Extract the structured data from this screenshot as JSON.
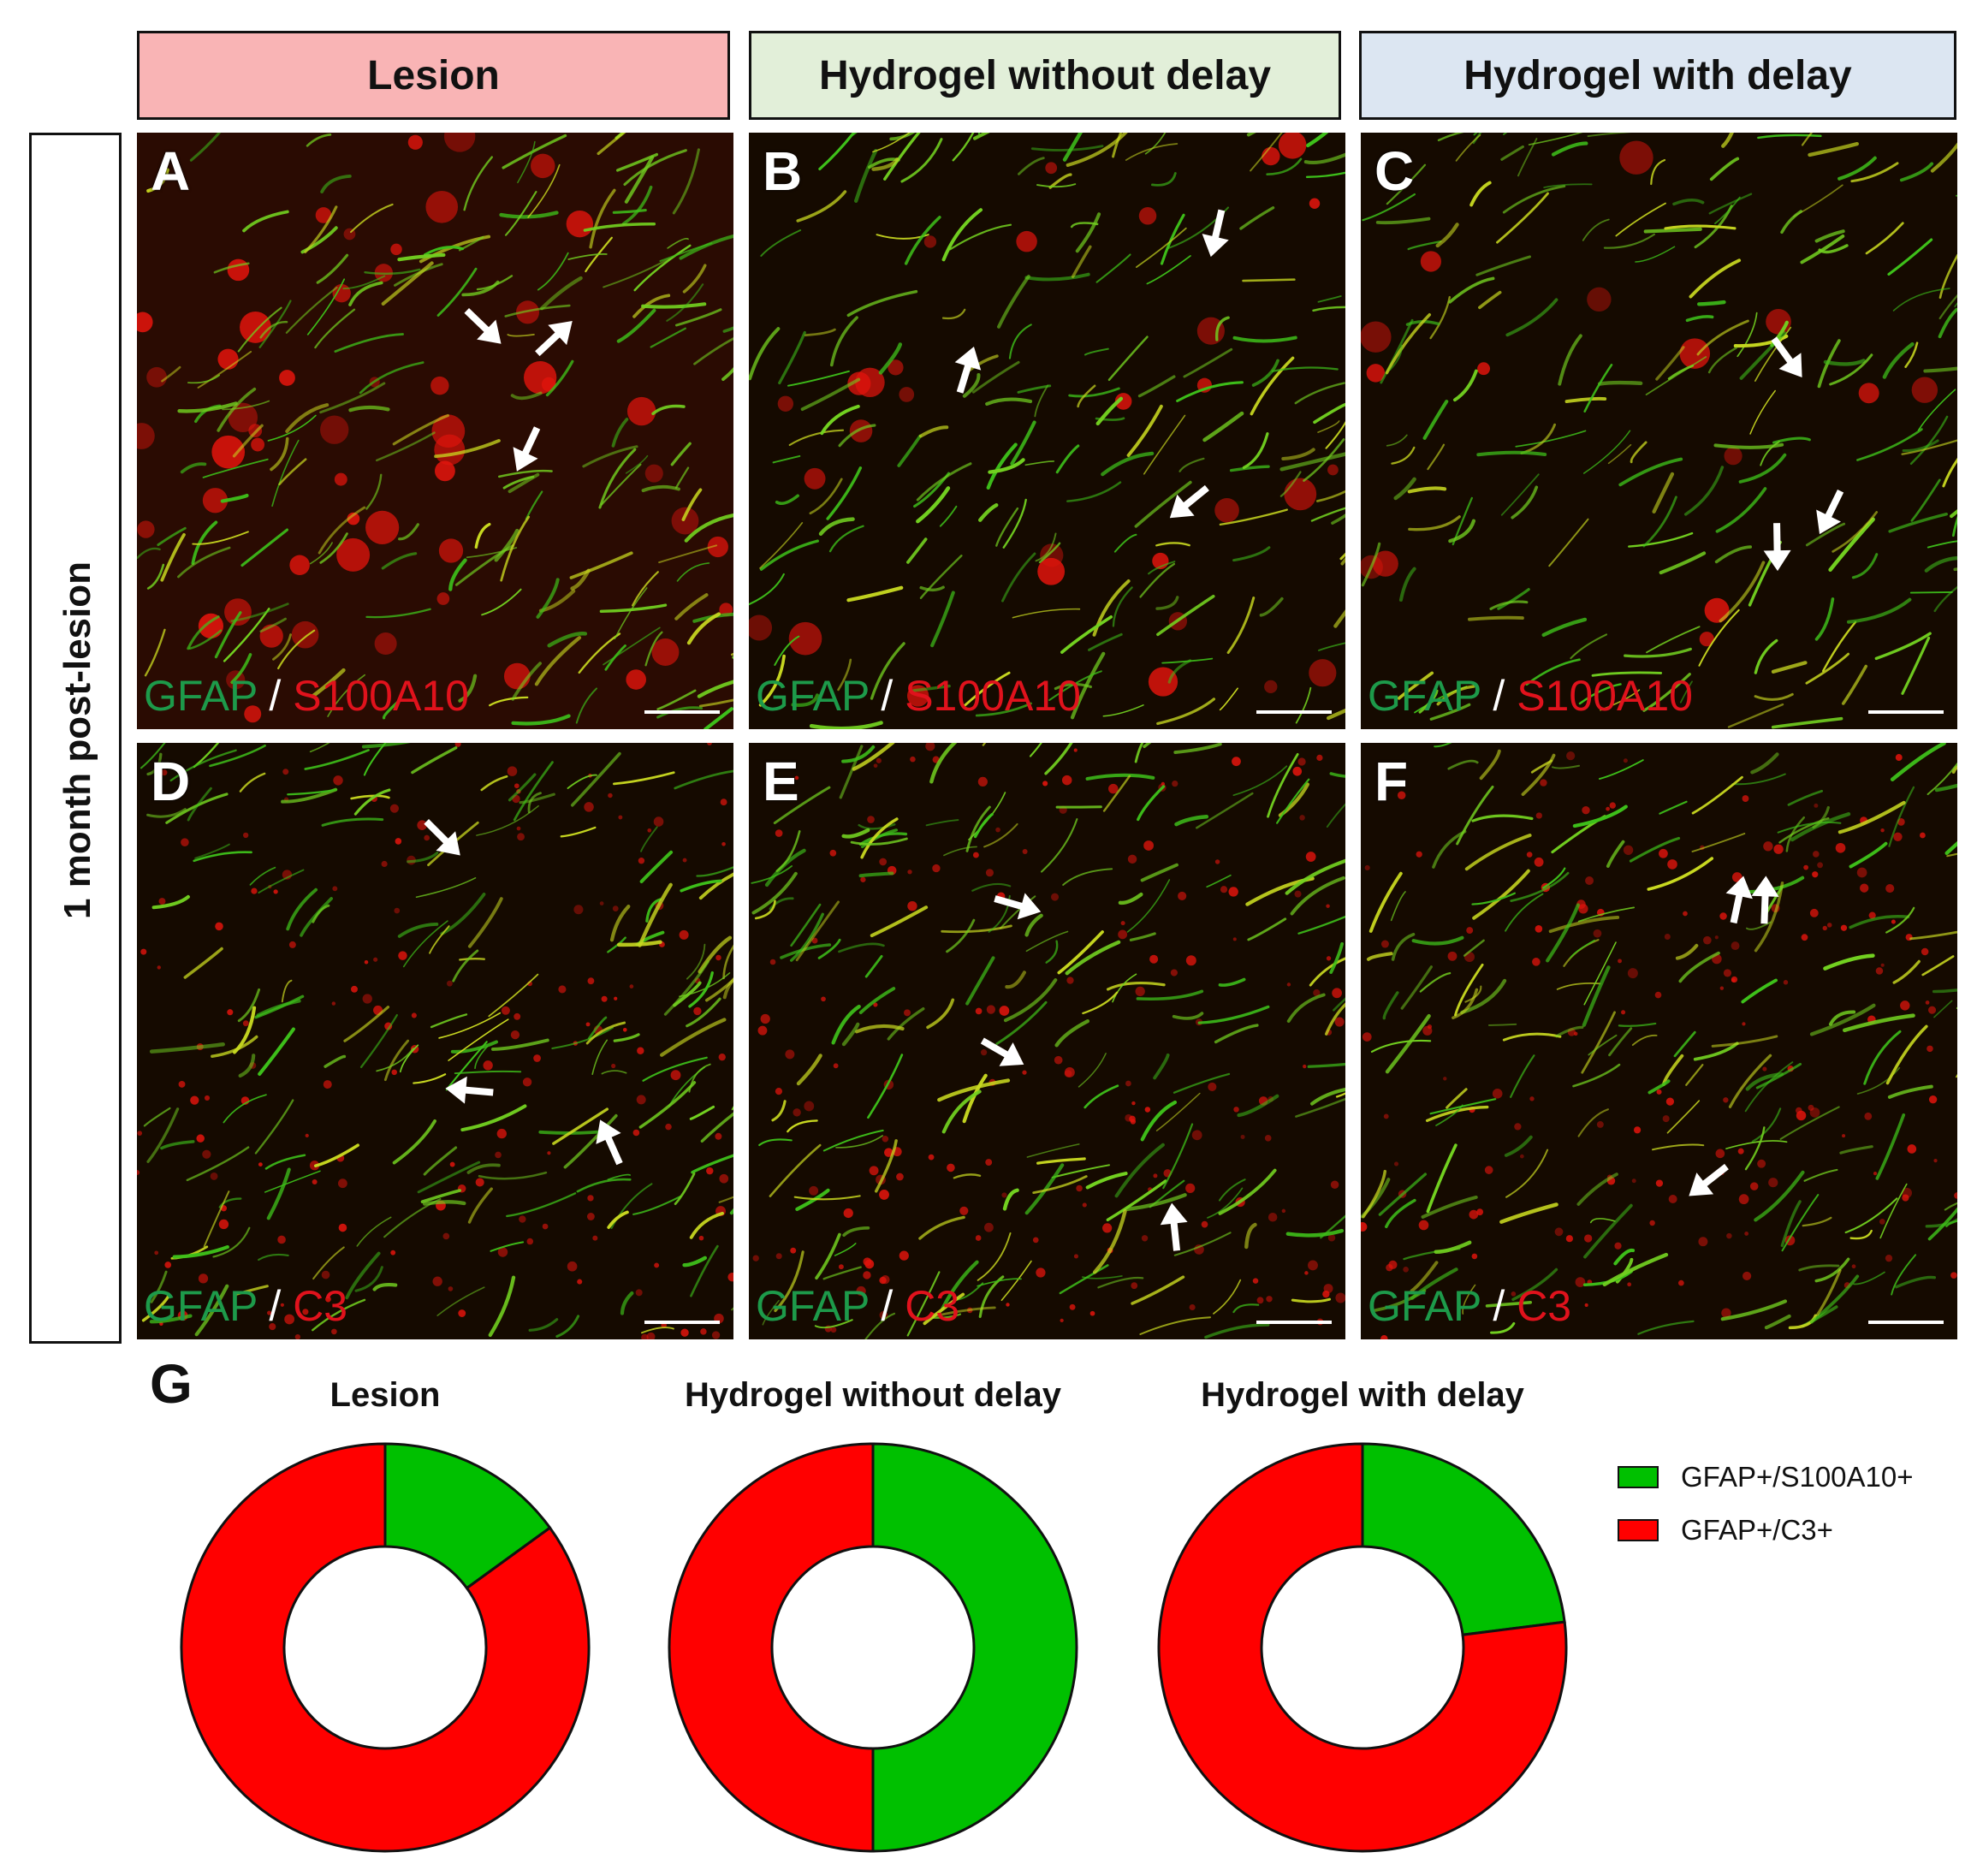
{
  "columns": [
    {
      "label": "Lesion",
      "color": "#f9b4b5"
    },
    {
      "label": "Hydrogel without delay",
      "color": "#e2efd9"
    },
    {
      "label": "Hydrogel with delay",
      "color": "#dce6f2"
    }
  ],
  "row_label": "1 month post-lesion",
  "panels": [
    {
      "letter": "A",
      "marker_green": "GFAP",
      "separator": "/",
      "marker_red": "S100A10"
    },
    {
      "letter": "B",
      "marker_green": "GFAP",
      "separator": "/",
      "marker_red": "S100A10"
    },
    {
      "letter": "C",
      "marker_green": "GFAP",
      "separator": "/",
      "marker_red": "S100A10"
    },
    {
      "letter": "D",
      "marker_green": "GFAP",
      "separator": "/",
      "marker_red": "C3"
    },
    {
      "letter": "E",
      "marker_green": "GFAP",
      "separator": "/",
      "marker_red": "C3"
    },
    {
      "letter": "F",
      "marker_green": "GFAP",
      "separator": "/",
      "marker_red": "C3"
    }
  ],
  "panel_g_letter": "G",
  "chart_data": [
    {
      "type": "pie",
      "title": "Lesion",
      "categories": [
        "GFAP+/S100A10+",
        "GFAP+/C3+"
      ],
      "values": [
        15,
        85
      ],
      "colors": [
        "#00c000",
        "#ff0000"
      ],
      "donut": true
    },
    {
      "type": "pie",
      "title": "Hydrogel without delay",
      "categories": [
        "GFAP+/S100A10+",
        "GFAP+/C3+"
      ],
      "values": [
        50,
        50
      ],
      "colors": [
        "#00c000",
        "#ff0000"
      ],
      "donut": true
    },
    {
      "type": "pie",
      "title": "Hydrogel with delay",
      "categories": [
        "GFAP+/S100A10+",
        "GFAP+/C3+"
      ],
      "values": [
        23,
        77
      ],
      "colors": [
        "#00c000",
        "#ff0000"
      ],
      "donut": true
    }
  ],
  "legend": [
    {
      "label": "GFAP+/S100A10+",
      "color": "#00c000"
    },
    {
      "label": "GFAP+/C3+",
      "color": "#ff0000"
    }
  ]
}
